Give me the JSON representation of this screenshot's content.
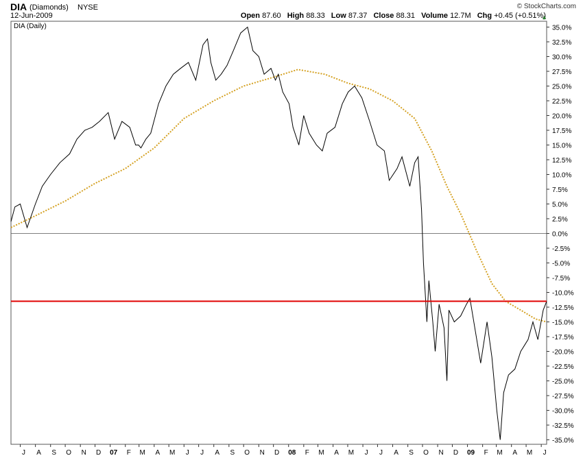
{
  "header": {
    "symbol": "DIA",
    "name": "(Diamonds)",
    "exchange": "NYSE",
    "date": "12-Jun-2009",
    "brand": "© StockCharts.com",
    "open_label": "Open",
    "open": "87.60",
    "high_label": "High",
    "high": "88.33",
    "low_label": "Low",
    "low": "87.37",
    "close_label": "Close",
    "close": "88.31",
    "volume_label": "Volume",
    "volume": "12.7M",
    "chg_label": "Chg",
    "chg": "+0.45 (+0.51%)"
  },
  "chart_data": {
    "type": "line",
    "legend": "DIA (Daily)",
    "ylim": [
      -36,
      36
    ],
    "y_unit": "%",
    "y_ticks": [
      "35.0%",
      "32.5%",
      "30.0%",
      "27.5%",
      "25.0%",
      "22.5%",
      "20.0%",
      "17.5%",
      "15.0%",
      "12.5%",
      "10.0%",
      "7.5%",
      "5.0%",
      "2.5%",
      "0.0%",
      "-2.5%",
      "-5.0%",
      "-7.5%",
      "-10.0%",
      "-12.5%",
      "-15.0%",
      "-17.5%",
      "-20.0%",
      "-22.5%",
      "-25.0%",
      "-27.5%",
      "-30.0%",
      "-32.5%",
      "-35.0%"
    ],
    "y_tick_values": [
      35,
      32.5,
      30,
      27.5,
      25,
      22.5,
      20,
      17.5,
      15,
      12.5,
      10,
      7.5,
      5,
      2.5,
      0,
      -2.5,
      -5,
      -7.5,
      -10,
      -12.5,
      -15,
      -17.5,
      -20,
      -22.5,
      -25,
      -27.5,
      -30,
      -32.5,
      -35
    ],
    "x_labels": [
      "J",
      "A",
      "S",
      "O",
      "N",
      "D",
      "07",
      "F",
      "M",
      "A",
      "M",
      "J",
      "J",
      "A",
      "S",
      "O",
      "N",
      "D",
      "08",
      "F",
      "M",
      "A",
      "M",
      "J",
      "J",
      "A",
      "S",
      "O",
      "N",
      "D",
      "09",
      "F",
      "M",
      "A",
      "M",
      "J"
    ],
    "x_bold": [
      "07",
      "08",
      "09"
    ],
    "x_start": "2006-06-12",
    "x_end": "2009-06-12",
    "reference_line": -11.5,
    "colors": {
      "price": "#000000",
      "ma": "#d4a020",
      "ref": "#e00000",
      "zero": "#555555"
    },
    "series": [
      {
        "kind": "price",
        "x": [
          "2006-06-12",
          "2006-06-20",
          "2006-07-01",
          "2006-07-15",
          "2006-08-01",
          "2006-08-15",
          "2006-09-01",
          "2006-09-20",
          "2006-10-10",
          "2006-10-25",
          "2006-11-10",
          "2006-11-25",
          "2006-12-10",
          "2006-12-28",
          "2007-01-10",
          "2007-01-25",
          "2007-02-10",
          "2007-02-22",
          "2007-02-28",
          "2007-03-05",
          "2007-03-15",
          "2007-03-25",
          "2007-04-10",
          "2007-04-25",
          "2007-05-10",
          "2007-05-25",
          "2007-06-10",
          "2007-06-25",
          "2007-07-10",
          "2007-07-19",
          "2007-07-26",
          "2007-08-05",
          "2007-08-16",
          "2007-08-28",
          "2007-09-10",
          "2007-09-25",
          "2007-10-09",
          "2007-10-20",
          "2007-11-01",
          "2007-11-12",
          "2007-11-26",
          "2007-12-05",
          "2007-12-11",
          "2007-12-20",
          "2008-01-02",
          "2008-01-10",
          "2008-01-22",
          "2008-02-01",
          "2008-02-12",
          "2008-02-27",
          "2008-03-10",
          "2008-03-20",
          "2008-04-05",
          "2008-04-20",
          "2008-05-02",
          "2008-05-15",
          "2008-05-30",
          "2008-06-15",
          "2008-06-30",
          "2008-07-15",
          "2008-07-25",
          "2008-08-10",
          "2008-08-20",
          "2008-09-05",
          "2008-09-15",
          "2008-09-22",
          "2008-09-29",
          "2008-10-03",
          "2008-10-10",
          "2008-10-14",
          "2008-10-22",
          "2008-10-27",
          "2008-11-04",
          "2008-11-14",
          "2008-11-20",
          "2008-11-24",
          "2008-12-05",
          "2008-12-18",
          "2008-12-30",
          "2009-01-06",
          "2009-01-20",
          "2009-01-28",
          "2009-02-10",
          "2009-02-20",
          "2009-03-02",
          "2009-03-09",
          "2009-03-16",
          "2009-03-26",
          "2009-04-08",
          "2009-04-20",
          "2009-05-05",
          "2009-05-15",
          "2009-05-25",
          "2009-06-05",
          "2009-06-12"
        ],
        "y": [
          2,
          4.5,
          5,
          1,
          5,
          8,
          10,
          12,
          13.5,
          16,
          17.5,
          18,
          19,
          20.5,
          16,
          19,
          18,
          15,
          15,
          14.5,
          16,
          17,
          22,
          25,
          27,
          28,
          29,
          26,
          32,
          33,
          29,
          26,
          27,
          28.5,
          31,
          34,
          35,
          31,
          30,
          27,
          28,
          26,
          27,
          24,
          22,
          18,
          15,
          20,
          17,
          15,
          14,
          17,
          18,
          22,
          24,
          25,
          23,
          19,
          15,
          14,
          9,
          11,
          13,
          8,
          12,
          13,
          4,
          -5,
          -15,
          -8,
          -15,
          -20,
          -12,
          -16,
          -25,
          -13,
          -15,
          -14,
          -12,
          -11,
          -18,
          -22,
          -15,
          -21,
          -30,
          -35,
          -27,
          -24,
          -23,
          -20,
          -18,
          -15,
          -18,
          -13,
          -11.5
        ]
      },
      {
        "kind": "ma",
        "x": [
          "2006-06-12",
          "2006-08-01",
          "2006-10-01",
          "2006-12-01",
          "2007-02-01",
          "2007-04-01",
          "2007-06-01",
          "2007-08-01",
          "2007-10-01",
          "2007-12-01",
          "2008-01-20",
          "2008-03-15",
          "2008-05-01",
          "2008-06-15",
          "2008-08-01",
          "2008-09-15",
          "2008-10-20",
          "2008-11-20",
          "2008-12-20",
          "2009-01-20",
          "2009-02-20",
          "2009-03-20",
          "2009-04-20",
          "2009-05-20",
          "2009-06-12"
        ],
        "y": [
          1,
          3,
          5.5,
          8.5,
          11,
          14.5,
          19.5,
          22.5,
          25,
          26.5,
          27.8,
          27,
          25.5,
          24.5,
          22.5,
          19.5,
          14,
          8,
          3,
          -3,
          -8.5,
          -11.5,
          -13,
          -14.5,
          -15
        ]
      }
    ]
  }
}
